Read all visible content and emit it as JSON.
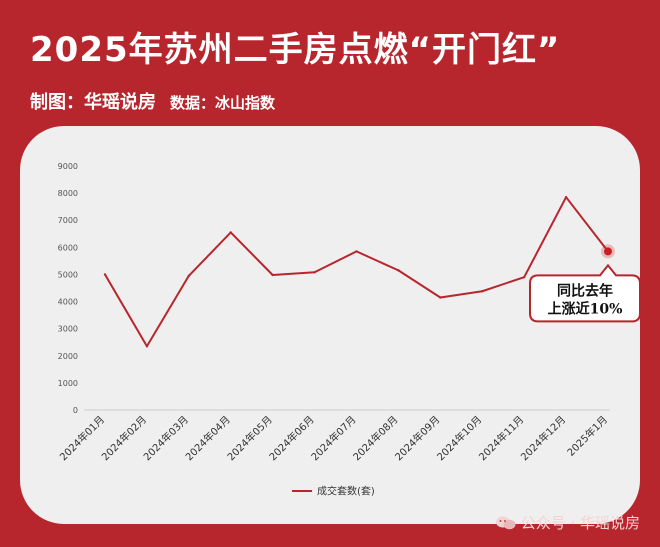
{
  "header": {
    "title": "2025年苏州二手房点燃“开门红”",
    "made_by": "制图：华瑶说房",
    "data_source": "数据：冰山指数"
  },
  "chart_data": {
    "type": "line",
    "categories": [
      "2024年01月",
      "2024年02月",
      "2024年03月",
      "2024年04月",
      "2024年05月",
      "2024年06月",
      "2024年07月",
      "2024年08月",
      "2024年09月",
      "2024年10月",
      "2024年11月",
      "2024年12月",
      "2025年1月"
    ],
    "series": [
      {
        "name": "成交套数(套)",
        "values": [
          5000,
          2350,
          4950,
          6550,
          4980,
          5080,
          5850,
          5150,
          4150,
          4380,
          4900,
          7850,
          5850
        ]
      }
    ],
    "ylim": [
      0,
      9000
    ],
    "yticks": [
      0,
      1000,
      2000,
      3000,
      4000,
      5000,
      6000,
      7000,
      8000,
      9000
    ],
    "legend_position": "bottom",
    "grid": false,
    "annotation": {
      "line1": "同比去年",
      "line2": "上涨近10%",
      "target_index": 12
    },
    "colors": {
      "line": "#b8262d",
      "highlight_point": "#c81e24",
      "axis": "#cccccc",
      "tick_text": "#555555"
    }
  },
  "watermark": {
    "text": "公众号 · 华瑶说房"
  }
}
